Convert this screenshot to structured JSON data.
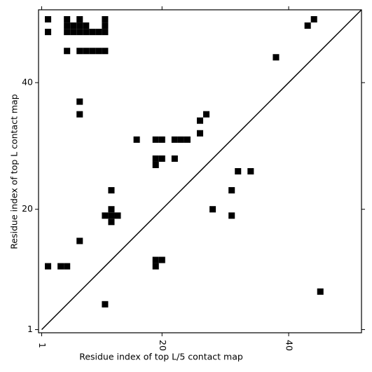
{
  "chart_data": {
    "type": "scatter",
    "x_label": "Residue index of top L/5 contact map",
    "y_label": "Residue index of top L contact map",
    "xlim": [
      0.5,
      51.5
    ],
    "ylim": [
      0.5,
      51.5
    ],
    "xticks": [
      1,
      20,
      40
    ],
    "yticks": [
      1,
      20,
      40
    ],
    "color": "#000000",
    "diagonal": true,
    "x": [
      2,
      2,
      5,
      7,
      11,
      5,
      6,
      7,
      8,
      11,
      5,
      6,
      7,
      8,
      9,
      10,
      11,
      5,
      7,
      8,
      9,
      10,
      11,
      7,
      7,
      16,
      19,
      20,
      22,
      23,
      24,
      26,
      26,
      27,
      19,
      20,
      19,
      22,
      12,
      32,
      34,
      31,
      28,
      31,
      12,
      11,
      12,
      13,
      12,
      7,
      2,
      4,
      5,
      19,
      20,
      19,
      11,
      45,
      38,
      43,
      44
    ],
    "y": [
      50,
      48,
      50,
      50,
      50,
      49,
      49,
      49,
      49,
      49,
      48,
      48,
      48,
      48,
      48,
      48,
      48,
      45,
      45,
      45,
      45,
      45,
      45,
      37,
      35,
      31,
      31,
      31,
      31,
      31,
      31,
      32,
      34,
      35,
      28,
      28,
      27,
      28,
      23,
      26,
      26,
      23,
      20,
      19,
      20,
      19,
      19,
      19,
      18,
      15,
      11,
      11,
      11,
      12,
      12,
      11,
      5,
      7,
      44,
      49,
      50
    ]
  }
}
